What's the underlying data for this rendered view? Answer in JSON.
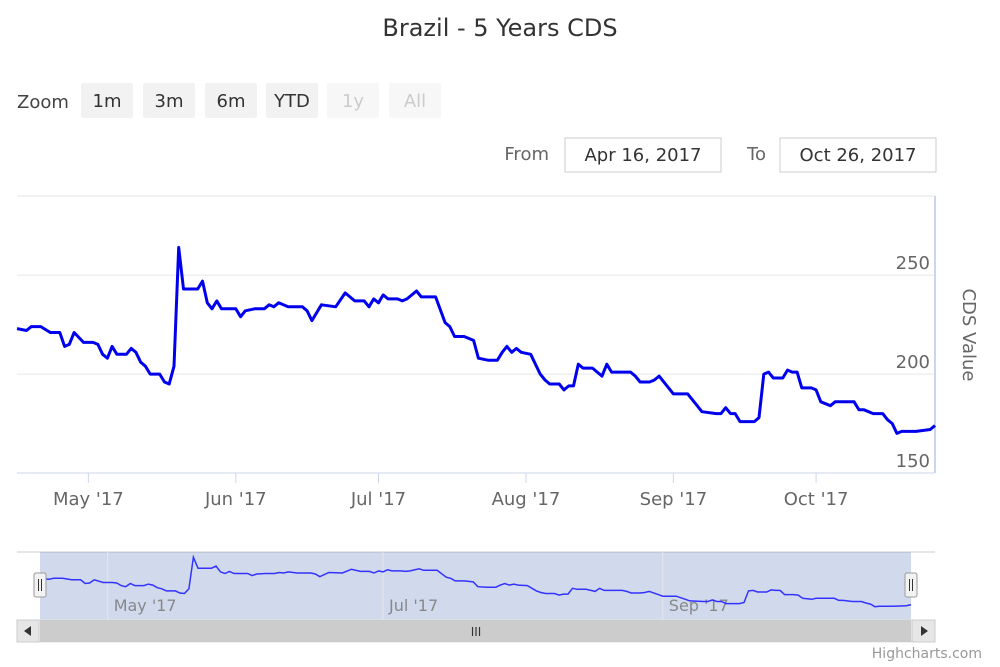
{
  "chart_data": {
    "type": "line",
    "title": "Brazil - 5 Years CDS",
    "ylabel": "CDS Value",
    "xlabel": "",
    "ylim": [
      150,
      290
    ],
    "ytick_values": [
      150,
      200,
      250
    ],
    "x_range": [
      "2017-04-16",
      "2017-10-26"
    ],
    "x_ticks": [
      {
        "label": "May '17",
        "date": "2017-05-01"
      },
      {
        "label": "Jun '17",
        "date": "2017-06-01"
      },
      {
        "label": "Jul '17",
        "date": "2017-07-01"
      },
      {
        "label": "Aug '17",
        "date": "2017-08-01"
      },
      {
        "label": "Sep '17",
        "date": "2017-09-01"
      },
      {
        "label": "Oct '17",
        "date": "2017-10-01"
      }
    ],
    "series": [
      {
        "color": "#0000ee",
        "points": [
          [
            "2017-04-16",
            223
          ],
          [
            "2017-04-18",
            222
          ],
          [
            "2017-04-19",
            224
          ],
          [
            "2017-04-21",
            224
          ],
          [
            "2017-04-23",
            221
          ],
          [
            "2017-04-25",
            221
          ],
          [
            "2017-04-26",
            214
          ],
          [
            "2017-04-27",
            215
          ],
          [
            "2017-04-28",
            221
          ],
          [
            "2017-04-30",
            216
          ],
          [
            "2017-05-02",
            216
          ],
          [
            "2017-05-03",
            215
          ],
          [
            "2017-05-04",
            210
          ],
          [
            "2017-05-05",
            208
          ],
          [
            "2017-05-06",
            214
          ],
          [
            "2017-05-07",
            210
          ],
          [
            "2017-05-09",
            210
          ],
          [
            "2017-05-10",
            213
          ],
          [
            "2017-05-11",
            211
          ],
          [
            "2017-05-12",
            206
          ],
          [
            "2017-05-13",
            204
          ],
          [
            "2017-05-14",
            200
          ],
          [
            "2017-05-16",
            200
          ],
          [
            "2017-05-17",
            196
          ],
          [
            "2017-05-18",
            195
          ],
          [
            "2017-05-19",
            204
          ],
          [
            "2017-05-20",
            264
          ],
          [
            "2017-05-21",
            243
          ],
          [
            "2017-05-24",
            243
          ],
          [
            "2017-05-25",
            247
          ],
          [
            "2017-05-26",
            236
          ],
          [
            "2017-05-27",
            233
          ],
          [
            "2017-05-28",
            237
          ],
          [
            "2017-05-29",
            233
          ],
          [
            "2017-06-01",
            233
          ],
          [
            "2017-06-02",
            229
          ],
          [
            "2017-06-03",
            232
          ],
          [
            "2017-06-05",
            233
          ],
          [
            "2017-06-07",
            233
          ],
          [
            "2017-06-08",
            235
          ],
          [
            "2017-06-09",
            234
          ],
          [
            "2017-06-10",
            236
          ],
          [
            "2017-06-12",
            234
          ],
          [
            "2017-06-15",
            234
          ],
          [
            "2017-06-16",
            232
          ],
          [
            "2017-06-17",
            227
          ],
          [
            "2017-06-19",
            235
          ],
          [
            "2017-06-22",
            234
          ],
          [
            "2017-06-24",
            241
          ],
          [
            "2017-06-26",
            237
          ],
          [
            "2017-06-28",
            237
          ],
          [
            "2017-06-29",
            234
          ],
          [
            "2017-06-30",
            238
          ],
          [
            "2017-07-01",
            236
          ],
          [
            "2017-07-02",
            240
          ],
          [
            "2017-07-03",
            238
          ],
          [
            "2017-07-05",
            238
          ],
          [
            "2017-07-06",
            237
          ],
          [
            "2017-07-07",
            238
          ],
          [
            "2017-07-09",
            242
          ],
          [
            "2017-07-10",
            239
          ],
          [
            "2017-07-13",
            239
          ],
          [
            "2017-07-15",
            226
          ],
          [
            "2017-07-16",
            224
          ],
          [
            "2017-07-17",
            219
          ],
          [
            "2017-07-19",
            219
          ],
          [
            "2017-07-21",
            217
          ],
          [
            "2017-07-22",
            208
          ],
          [
            "2017-07-24",
            207
          ],
          [
            "2017-07-26",
            207
          ],
          [
            "2017-07-27",
            211
          ],
          [
            "2017-07-28",
            214
          ],
          [
            "2017-07-29",
            211
          ],
          [
            "2017-07-30",
            213
          ],
          [
            "2017-07-31",
            211
          ],
          [
            "2017-08-02",
            210
          ],
          [
            "2017-08-04",
            200
          ],
          [
            "2017-08-05",
            197
          ],
          [
            "2017-08-06",
            195
          ],
          [
            "2017-08-08",
            195
          ],
          [
            "2017-08-09",
            192
          ],
          [
            "2017-08-10",
            194
          ],
          [
            "2017-08-11",
            194
          ],
          [
            "2017-08-12",
            205
          ],
          [
            "2017-08-13",
            203
          ],
          [
            "2017-08-15",
            203
          ],
          [
            "2017-08-17",
            199
          ],
          [
            "2017-08-18",
            205
          ],
          [
            "2017-08-19",
            201
          ],
          [
            "2017-08-21",
            201
          ],
          [
            "2017-08-23",
            201
          ],
          [
            "2017-08-24",
            199
          ],
          [
            "2017-08-25",
            196
          ],
          [
            "2017-08-27",
            196
          ],
          [
            "2017-08-28",
            197
          ],
          [
            "2017-08-29",
            199
          ],
          [
            "2017-08-31",
            193
          ],
          [
            "2017-09-01",
            190
          ],
          [
            "2017-09-04",
            190
          ],
          [
            "2017-09-06",
            184
          ],
          [
            "2017-09-07",
            181
          ],
          [
            "2017-09-10",
            180
          ],
          [
            "2017-09-11",
            180
          ],
          [
            "2017-09-12",
            183
          ],
          [
            "2017-09-13",
            180
          ],
          [
            "2017-09-14",
            180
          ],
          [
            "2017-09-15",
            176
          ],
          [
            "2017-09-18",
            176
          ],
          [
            "2017-09-19",
            178
          ],
          [
            "2017-09-20",
            200
          ],
          [
            "2017-09-21",
            201
          ],
          [
            "2017-09-22",
            198
          ],
          [
            "2017-09-23",
            198
          ],
          [
            "2017-09-24",
            198
          ],
          [
            "2017-09-25",
            202
          ],
          [
            "2017-09-26",
            201
          ],
          [
            "2017-09-27",
            201
          ],
          [
            "2017-09-28",
            193
          ],
          [
            "2017-09-30",
            193
          ],
          [
            "2017-10-01",
            192
          ],
          [
            "2017-10-02",
            186
          ],
          [
            "2017-10-04",
            184
          ],
          [
            "2017-10-05",
            186
          ],
          [
            "2017-10-09",
            186
          ],
          [
            "2017-10-10",
            182
          ],
          [
            "2017-10-11",
            182
          ],
          [
            "2017-10-13",
            180
          ],
          [
            "2017-10-15",
            180
          ],
          [
            "2017-10-16",
            177
          ],
          [
            "2017-10-17",
            175
          ],
          [
            "2017-10-18",
            170
          ],
          [
            "2017-10-19",
            171
          ],
          [
            "2017-10-22",
            171
          ],
          [
            "2017-10-25",
            172
          ],
          [
            "2017-10-26",
            174
          ]
        ]
      }
    ],
    "grid": true,
    "navigator_ticks": [
      {
        "label": "May '17",
        "date": "2017-05-01"
      },
      {
        "label": "Jul '17",
        "date": "2017-07-01"
      },
      {
        "label": "Sep '17",
        "date": "2017-09-01"
      }
    ]
  },
  "zoom": {
    "label": "Zoom",
    "buttons": [
      {
        "label": "1m",
        "enabled": true
      },
      {
        "label": "3m",
        "enabled": true
      },
      {
        "label": "6m",
        "enabled": true
      },
      {
        "label": "YTD",
        "enabled": true
      },
      {
        "label": "1y",
        "enabled": false
      },
      {
        "label": "All",
        "enabled": false
      }
    ]
  },
  "range_input": {
    "from_label": "From",
    "from_value": "Apr 16, 2017",
    "to_label": "To",
    "to_value": "Oct 26, 2017"
  },
  "scrollbar": {
    "grip": "III"
  },
  "credits": "Highcharts.com",
  "colors": {
    "line": "#0000ee",
    "grid": "#e6e6e6",
    "navigator_mask": "rgba(102,133,194,0.3)",
    "navigator_line": "#3333ff"
  }
}
